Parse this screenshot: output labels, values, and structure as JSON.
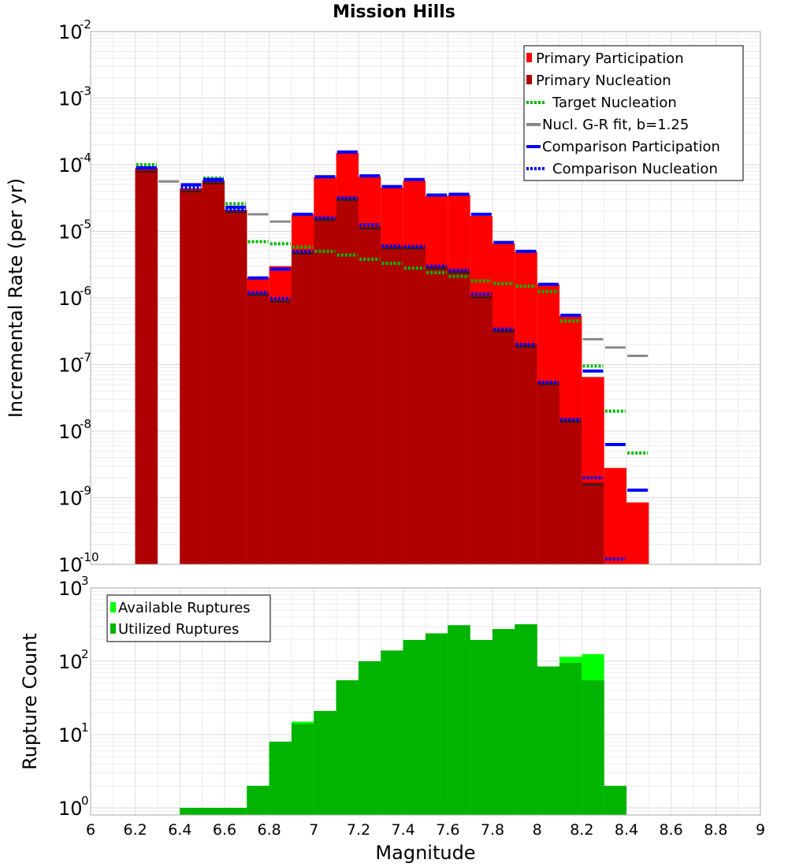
{
  "chart_data": [
    {
      "type": "bar",
      "title": "Mission Hills",
      "xlabel": "Magnitude",
      "ylabel": "Incremental Rate (per yr)",
      "yscale": "log",
      "xlim": [
        6,
        9
      ],
      "ylim": [
        1e-10,
        0.01
      ],
      "ytick_exponents": [
        -10,
        -9,
        -8,
        -7,
        -6,
        -5,
        -4,
        -3,
        -2
      ],
      "grid": true,
      "legend_position": "top-right",
      "x": [
        6.25,
        6.35,
        6.45,
        6.55,
        6.65,
        6.75,
        6.85,
        6.95,
        7.05,
        7.15,
        7.25,
        7.35,
        7.45,
        7.55,
        7.65,
        7.75,
        7.85,
        7.95,
        8.05,
        8.15,
        8.25,
        8.35,
        8.45
      ],
      "series": [
        {
          "name": "Primary Participation",
          "style": "bar",
          "color": "#ff0000",
          "values": [
            9e-05,
            null,
            4.4e-05,
            5.8e-05,
            2.1e-05,
            2e-06,
            3e-06,
            1.8e-05,
            6.5e-05,
            0.00015,
            6.6e-05,
            4.5e-05,
            5.8e-05,
            3.4e-05,
            3.5e-05,
            1.7e-05,
            6.6e-06,
            4.9e-06,
            1.6e-06,
            5.4e-07,
            6.5e-08,
            2.8e-09,
            8.5e-10
          ]
        },
        {
          "name": "Primary Nucleation",
          "style": "bar",
          "color": "#b00000",
          "values": [
            8.5e-05,
            null,
            4.3e-05,
            5.7e-05,
            2.1e-05,
            1.2e-06,
            9.5e-07,
            5e-06,
            1.6e-05,
            3.2e-05,
            1.2e-05,
            6e-06,
            6e-06,
            3e-06,
            2.6e-06,
            1.1e-06,
            3.4e-07,
            2e-07,
            5.5e-08,
            1.5e-08,
            1.7e-09,
            null,
            null
          ]
        },
        {
          "name": "Target Nucleation",
          "style": "dotted",
          "color": "#00bb00",
          "values": [
            0.0001,
            null,
            4.6e-05,
            6.3e-05,
            2.6e-05,
            7e-06,
            6.5e-06,
            5.8e-06,
            5e-06,
            4.4e-06,
            3.8e-06,
            3.3e-06,
            2.8e-06,
            2.4e-06,
            2.1e-06,
            1.8e-06,
            1.65e-06,
            1.5e-06,
            1.25e-06,
            4.5e-07,
            9.5e-08,
            2e-08,
            4.7e-09
          ]
        },
        {
          "name": "Nucl. G-R fit, b=1.25",
          "style": "line",
          "color": "#888888",
          "values": [
            null,
            5.6e-05,
            null,
            null,
            null,
            1.8e-05,
            1.4e-05,
            null,
            null,
            null,
            null,
            null,
            null,
            null,
            null,
            null,
            null,
            null,
            null,
            null,
            2.4e-07,
            1.8e-07,
            1.35e-07
          ]
        },
        {
          "name": "Comparison Participation",
          "style": "line",
          "color": "#0000ff",
          "values": [
            9e-05,
            null,
            5e-05,
            6e-05,
            2.3e-05,
            2e-06,
            2.7e-06,
            1.8e-05,
            6.6e-05,
            0.000155,
            6.8e-05,
            4.7e-05,
            6e-05,
            3.5e-05,
            3.6e-05,
            1.8e-05,
            6.8e-06,
            5e-06,
            1.6e-06,
            5.5e-07,
            8e-08,
            6.3e-09,
            1.3e-09
          ]
        },
        {
          "name": "Comparison Nucleation",
          "style": "dotted",
          "color": "#0000ff",
          "values": [
            null,
            null,
            4.5e-05,
            5.8e-05,
            2.1e-05,
            1.2e-06,
            9.8e-07,
            5e-06,
            1.6e-05,
            3.2e-05,
            1.25e-05,
            6e-06,
            5.9e-06,
            3e-06,
            2.6e-06,
            1.15e-06,
            3.4e-07,
            2e-07,
            5.4e-08,
            1.5e-08,
            2e-09,
            1.2e-10,
            null
          ]
        }
      ],
      "nucleation_marker_color": "#222222"
    },
    {
      "type": "bar",
      "title": "",
      "xlabel": "Magnitude",
      "ylabel": "Rupture Count",
      "yscale": "log",
      "xlim": [
        6,
        9
      ],
      "ylim": [
        0.8,
        1000
      ],
      "ytick_exponents": [
        0,
        1,
        2,
        3
      ],
      "xticks": [
        "6",
        "6.2",
        "6.4",
        "6.6",
        "6.8",
        "7",
        "7.2",
        "7.4",
        "7.6",
        "7.8",
        "8",
        "8.2",
        "8.4",
        "8.6",
        "8.8",
        "9"
      ],
      "grid": true,
      "legend_position": "top-left",
      "x": [
        6.45,
        6.55,
        6.65,
        6.75,
        6.85,
        6.95,
        7.05,
        7.15,
        7.25,
        7.35,
        7.45,
        7.55,
        7.65,
        7.75,
        7.85,
        7.95,
        8.05,
        8.15,
        8.25,
        8.35
      ],
      "series": [
        {
          "name": "Available Ruptures",
          "color": "#00ff00",
          "values": [
            1,
            1,
            1,
            2,
            8,
            15,
            21,
            55,
            100,
            140,
            195,
            240,
            310,
            195,
            275,
            320,
            85,
            115,
            125,
            2
          ]
        },
        {
          "name": "Utilized Ruptures",
          "color": "#00b400",
          "values": [
            1,
            1,
            1,
            2,
            8,
            14,
            21,
            55,
            100,
            140,
            195,
            240,
            310,
            195,
            275,
            320,
            85,
            95,
            55,
            2
          ]
        }
      ]
    }
  ]
}
